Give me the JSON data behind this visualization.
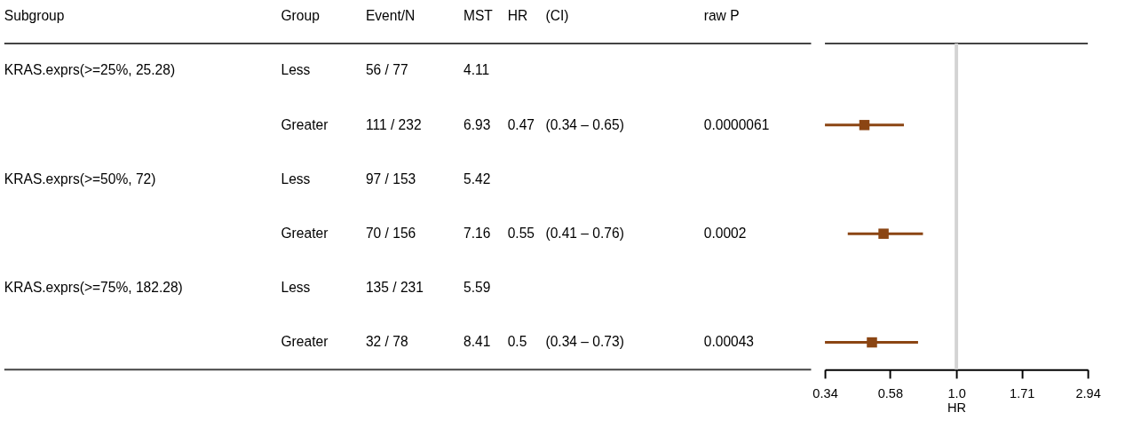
{
  "chart_data": [
    {
      "type": "other",
      "categories": [
        "Subgroup",
        "Group",
        "Event/N",
        "MST",
        "HR",
        "(CI)",
        "raw P"
      ],
      "cells": [
        [
          "KRAS.exprs(>=25%, 25.28)",
          "Less",
          "56 / 77",
          "4.11",
          null,
          null,
          null
        ],
        [
          null,
          "Greater",
          "111 / 232",
          "6.93",
          "0.47",
          "(0.34 – 0.65)",
          "0.0000061"
        ],
        [
          "KRAS.exprs(>=50%, 72)",
          "Less",
          "97 / 153",
          "5.42",
          null,
          null,
          null
        ],
        [
          null,
          "Greater",
          "70 / 156",
          "7.16",
          "0.55",
          "(0.41 – 0.76)",
          "0.0002"
        ],
        [
          "KRAS.exprs(>=75%, 182.28)",
          "Less",
          "135 / 231",
          "5.59",
          null,
          null,
          null
        ],
        [
          null,
          "Greater",
          "32 / 78",
          "8.41",
          "0.5",
          "(0.34 – 0.73)",
          "0.00043"
        ]
      ]
    },
    {
      "type": "scatter",
      "orientation": "horizontal",
      "categories": [
        null,
        null,
        null,
        null,
        null,
        null
      ],
      "series": [
        {
          "color": "#8b4513",
          "values": [
            null,
            0.47,
            null,
            0.55,
            null,
            0.5
          ],
          "errors": [
            null,
            [
              0.34,
              0.65
            ],
            null,
            [
              0.41,
              0.76
            ],
            null,
            [
              0.34,
              0.73
            ]
          ]
        }
      ],
      "marker": "square",
      "log": "x",
      "xlim": [
        0.34,
        2.94
      ],
      "xticks": [
        0.34,
        0.58,
        {
          "value": 1,
          "label": "1.0"
        },
        1.71,
        2.94
      ],
      "xlabel": "HR",
      "ref_lines": [
        {
          "axis": "x",
          "value": 1,
          "color": "#d3d3d3"
        }
      ],
      "grid": false,
      "legend": false
    }
  ]
}
